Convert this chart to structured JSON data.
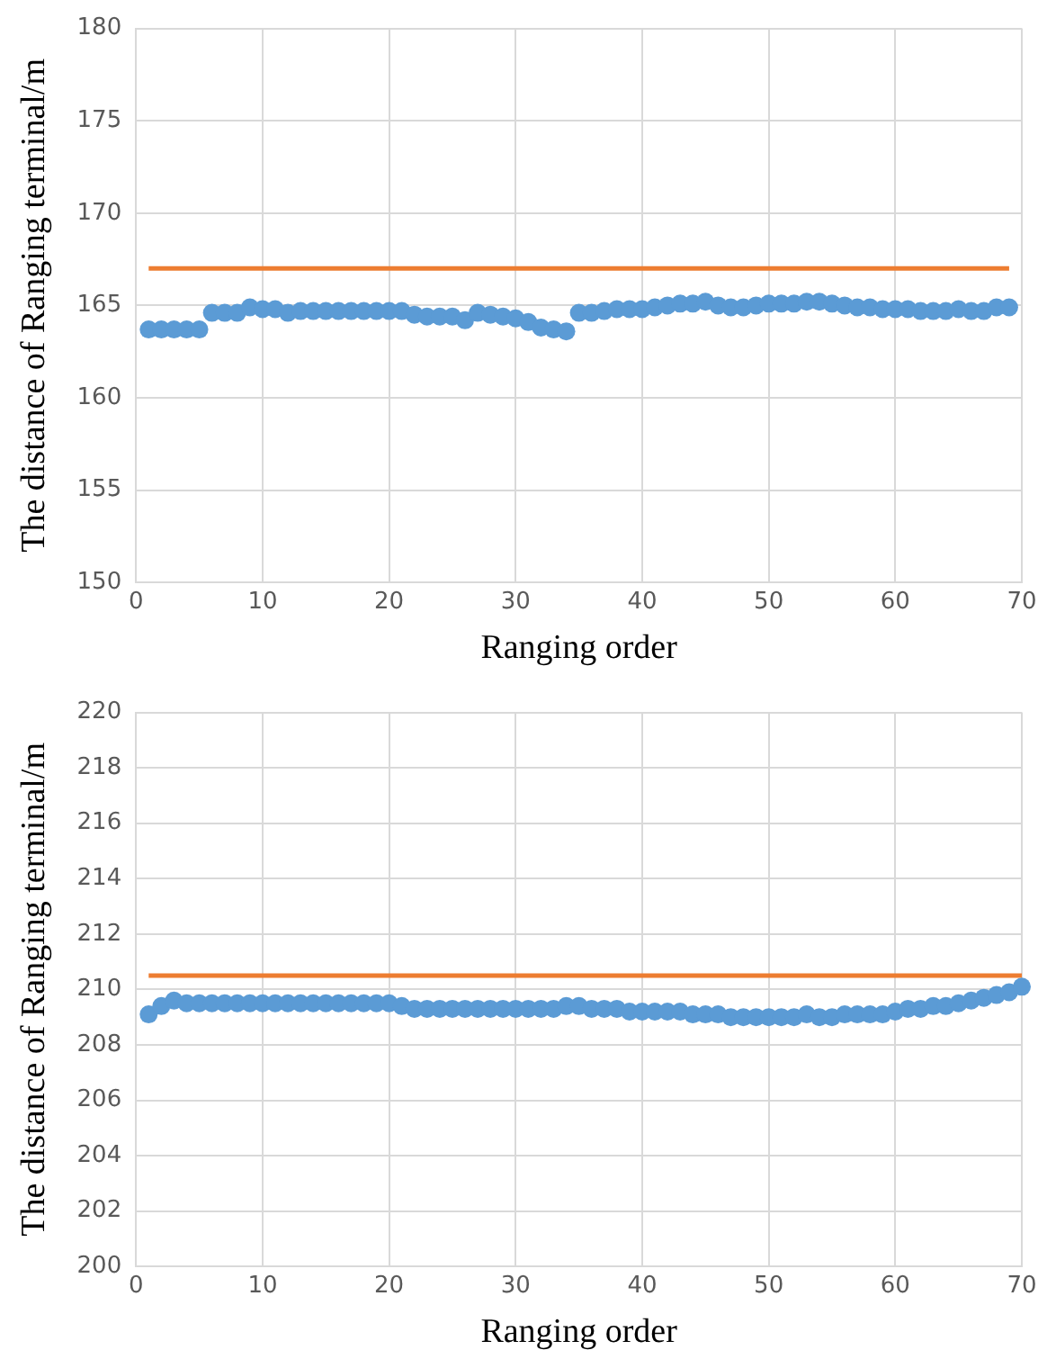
{
  "chart_data": [
    {
      "type": "line",
      "xlabel": "Ranging order",
      "ylabel": "The distance of Ranging terminal/m",
      "xlim": [
        0,
        70
      ],
      "xticks": [
        0,
        10,
        20,
        30,
        40,
        50,
        60,
        70
      ],
      "ylim": [
        150,
        180
      ],
      "yticks": [
        150,
        155,
        160,
        165,
        170,
        175,
        180
      ],
      "grid": true,
      "legend": false,
      "marker": "circle",
      "series": [
        {
          "type": "scatter",
          "color": "#5b9bd5",
          "x": [
            1,
            2,
            3,
            4,
            5,
            6,
            7,
            8,
            9,
            10,
            11,
            12,
            13,
            14,
            15,
            16,
            17,
            18,
            19,
            20,
            21,
            22,
            23,
            24,
            25,
            26,
            27,
            28,
            29,
            30,
            31,
            32,
            33,
            34,
            35,
            36,
            37,
            38,
            39,
            40,
            41,
            42,
            43,
            44,
            45,
            46,
            47,
            48,
            49,
            50,
            51,
            52,
            53,
            54,
            55,
            56,
            57,
            58,
            59,
            60,
            61,
            62,
            63,
            64,
            65,
            66,
            67,
            68,
            69
          ],
          "values": [
            163.7,
            163.7,
            163.7,
            163.7,
            163.7,
            164.6,
            164.6,
            164.6,
            164.9,
            164.8,
            164.8,
            164.6,
            164.7,
            164.7,
            164.7,
            164.7,
            164.7,
            164.7,
            164.7,
            164.7,
            164.7,
            164.5,
            164.4,
            164.4,
            164.4,
            164.2,
            164.6,
            164.5,
            164.4,
            164.3,
            164.1,
            163.8,
            163.7,
            163.6,
            164.6,
            164.6,
            164.7,
            164.8,
            164.8,
            164.8,
            164.9,
            165.0,
            165.1,
            165.1,
            165.2,
            165.0,
            164.9,
            164.9,
            165.0,
            165.1,
            165.1,
            165.1,
            165.2,
            165.2,
            165.1,
            165.0,
            164.9,
            164.9,
            164.8,
            164.8,
            164.8,
            164.7,
            164.7,
            164.7,
            164.8,
            164.7,
            164.7,
            164.9,
            164.9
          ]
        },
        {
          "color": "#ed7d31",
          "marker": "none",
          "x": [
            1,
            69
          ],
          "values": [
            167,
            167
          ]
        }
      ]
    },
    {
      "type": "line",
      "xlabel": "Ranging order",
      "ylabel": "The distance of Ranging terminal/m",
      "xlim": [
        0,
        70
      ],
      "xticks": [
        0,
        10,
        20,
        30,
        40,
        50,
        60,
        70
      ],
      "ylim": [
        200,
        220
      ],
      "yticks": [
        200,
        202,
        204,
        206,
        208,
        210,
        212,
        214,
        216,
        218,
        220
      ],
      "grid": true,
      "legend": false,
      "marker": "circle",
      "series": [
        {
          "type": "scatter",
          "color": "#5b9bd5",
          "x": [
            1,
            2,
            3,
            4,
            5,
            6,
            7,
            8,
            9,
            10,
            11,
            12,
            13,
            14,
            15,
            16,
            17,
            18,
            19,
            20,
            21,
            22,
            23,
            24,
            25,
            26,
            27,
            28,
            29,
            30,
            31,
            32,
            33,
            34,
            35,
            36,
            37,
            38,
            39,
            40,
            41,
            42,
            43,
            44,
            45,
            46,
            47,
            48,
            49,
            50,
            51,
            52,
            53,
            54,
            55,
            56,
            57,
            58,
            59,
            60,
            61,
            62,
            63,
            64,
            65,
            66,
            67,
            68,
            69,
            70
          ],
          "values": [
            209.1,
            209.4,
            209.6,
            209.5,
            209.5,
            209.5,
            209.5,
            209.5,
            209.5,
            209.5,
            209.5,
            209.5,
            209.5,
            209.5,
            209.5,
            209.5,
            209.5,
            209.5,
            209.5,
            209.5,
            209.4,
            209.3,
            209.3,
            209.3,
            209.3,
            209.3,
            209.3,
            209.3,
            209.3,
            209.3,
            209.3,
            209.3,
            209.3,
            209.4,
            209.4,
            209.3,
            209.3,
            209.3,
            209.2,
            209.2,
            209.2,
            209.2,
            209.2,
            209.1,
            209.1,
            209.1,
            209.0,
            209.0,
            209.0,
            209.0,
            209.0,
            209.0,
            209.1,
            209.0,
            209.0,
            209.1,
            209.1,
            209.1,
            209.1,
            209.2,
            209.3,
            209.3,
            209.4,
            209.4,
            209.5,
            209.6,
            209.7,
            209.8,
            209.9,
            210.1
          ]
        },
        {
          "color": "#ed7d31",
          "marker": "none",
          "x": [
            1,
            70
          ],
          "values": [
            210.5,
            210.5
          ]
        }
      ]
    }
  ]
}
